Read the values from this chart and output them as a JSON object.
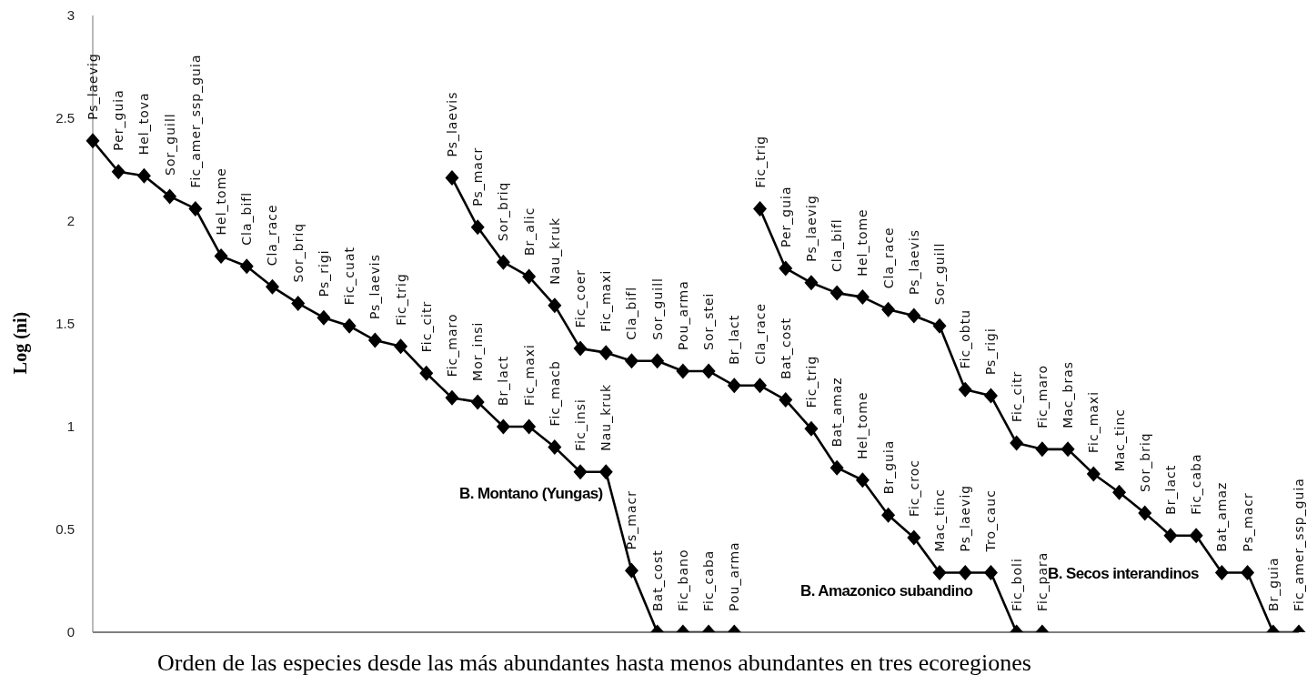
{
  "chart_data": {
    "type": "line",
    "xlabel": "Orden de las especies desde las más abundantes hasta menos abundantes en tres ecoregiones",
    "ylabel": "Log (ni)",
    "ylim": [
      0,
      3
    ],
    "yticks": [
      0,
      0.5,
      1,
      1.5,
      2,
      2.5,
      3
    ],
    "tick_labels": "y",
    "marker": "diamond",
    "line_style": "solid",
    "categories": [
      null,
      null,
      null,
      null,
      null,
      null,
      null,
      null,
      null,
      null,
      null,
      null,
      null,
      null,
      null,
      null,
      null,
      null,
      null,
      null,
      null,
      null,
      null,
      null,
      null,
      null,
      null,
      null,
      null,
      null,
      null,
      null,
      null,
      null,
      null,
      null,
      null,
      null,
      null,
      null,
      null,
      null,
      null,
      null,
      null,
      null,
      null,
      null
    ],
    "series": [
      {
        "name": "B. Montano (Yungas)",
        "color": "#000000",
        "values": [
          2.39,
          2.24,
          2.22,
          2.12,
          2.06,
          1.83,
          1.78,
          1.68,
          1.6,
          1.53,
          1.49,
          1.42,
          1.39,
          1.26,
          1.14,
          1.12,
          1,
          1,
          0.9,
          0.78,
          0.78,
          0.3,
          0,
          0,
          0,
          0,
          null,
          null,
          null,
          null,
          null,
          null,
          null,
          null,
          null,
          null,
          null,
          null,
          null,
          null,
          null,
          null,
          null,
          null,
          null,
          null,
          null,
          null
        ],
        "value_labels": [
          "Ps_laevig",
          "Per_guia",
          "Hel_tova",
          "Sor_guill",
          "Fic_amer_ssp_guia",
          "Hel_tome",
          "Cla_bifl",
          "Cla_race",
          "Sor_briq",
          "Ps_rigi",
          "Fic_cuat",
          "Ps_laevis",
          "Fic_trig",
          "Fic_citr",
          "Fic_maro",
          "Mor_insi",
          "Br_lact",
          "Fic_maxi",
          "Fic_macb",
          "Fic_insi",
          "Nau_kruk",
          "Ps_macr",
          "Bat_cost",
          "Fic_bano",
          "Fic_caba",
          "Pou_arma",
          null,
          null,
          null,
          null,
          null,
          null,
          null,
          null,
          null,
          null,
          null,
          null,
          null,
          null,
          null,
          null,
          null,
          null,
          null,
          null,
          null,
          null
        ]
      },
      {
        "name": "B. Amazonico subandino",
        "color": "#000000",
        "values": [
          null,
          null,
          null,
          null,
          null,
          null,
          null,
          null,
          null,
          null,
          null,
          null,
          null,
          null,
          2.21,
          1.97,
          1.8,
          1.73,
          1.59,
          1.38,
          1.36,
          1.32,
          1.32,
          1.27,
          1.27,
          1.2,
          1.2,
          1.13,
          0.99,
          0.8,
          0.74,
          0.57,
          0.46,
          0.29,
          0.29,
          0.29,
          0,
          0,
          null,
          null,
          null,
          null,
          null,
          null,
          null,
          null,
          null,
          null
        ],
        "value_labels": [
          null,
          null,
          null,
          null,
          null,
          null,
          null,
          null,
          null,
          null,
          null,
          null,
          null,
          null,
          "Ps_laevis",
          "Ps_macr",
          "Sor_briq",
          "Br_alic",
          "Nau_kruk",
          "Fic_coer",
          "Fic_maxi",
          "Cla_bifl",
          "Sor_guill",
          "Pou_arma",
          "Sor_stei",
          "Br_lact",
          "Cla_race",
          "Bat_cost",
          "Fic_trig",
          "Bat_amaz",
          "Hel_tome",
          "Br_guia",
          "Fic_croc",
          "Mac_tinc",
          "Ps_laevig",
          "Tro_cauc",
          "Fic_boli",
          "Fic_para",
          null,
          null,
          null,
          null,
          null,
          null,
          null,
          null,
          null,
          null
        ]
      },
      {
        "name": "B. Secos interandinos",
        "color": "#000000",
        "values": [
          null,
          null,
          null,
          null,
          null,
          null,
          null,
          null,
          null,
          null,
          null,
          null,
          null,
          null,
          null,
          null,
          null,
          null,
          null,
          null,
          null,
          null,
          null,
          null,
          null,
          null,
          2.06,
          1.77,
          1.7,
          1.65,
          1.63,
          1.57,
          1.54,
          1.49,
          1.18,
          1.15,
          0.92,
          0.89,
          0.89,
          0.77,
          0.68,
          0.58,
          0.47,
          0.47,
          0.29,
          0.29,
          0,
          0
        ],
        "value_labels": [
          null,
          null,
          null,
          null,
          null,
          null,
          null,
          null,
          null,
          null,
          null,
          null,
          null,
          null,
          null,
          null,
          null,
          null,
          null,
          null,
          null,
          null,
          null,
          null,
          null,
          null,
          "Fic_trig",
          "Per_guia",
          "Ps_laevig",
          "Cla_bifl",
          "Hel_tome",
          "Cla_race",
          "Ps_laevis",
          "Sor_guill",
          "Fic_obtu",
          "Ps_rigi",
          "Fic_citr",
          "Fic_maro",
          "Mac_bras",
          "Fic_maxi",
          "Mac_tinc",
          "Sor_briq",
          "Br_lact",
          "Fic_caba",
          "Bat_amaz",
          "Ps_macr",
          "Br_guia",
          "Fic_amer_ssp_guia"
        ]
      }
    ]
  }
}
